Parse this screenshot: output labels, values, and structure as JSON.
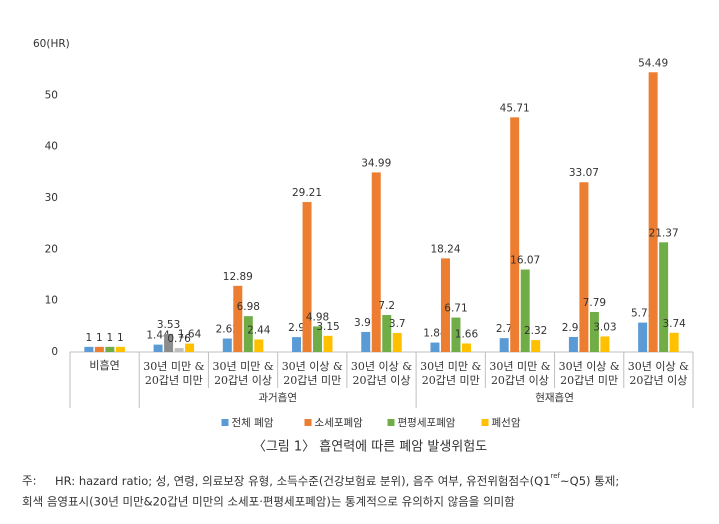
{
  "chart_data": {
    "type": "bar",
    "categories": [
      [
        "비흡연"
      ],
      [
        "30년 미만 &",
        "20갑년 미만"
      ],
      [
        "30년 미만 &",
        "20갑년 이상"
      ],
      [
        "30년 이상 &",
        "20갑년 미만"
      ],
      [
        "30년 이상 &",
        "20갑년 이상"
      ],
      [
        "30년 미만 &",
        "20갑년 미만"
      ],
      [
        "30년 미만 &",
        "20갑년 이상"
      ],
      [
        "30년 이상 &",
        "20갑년 미만"
      ],
      [
        "30년 이상 &",
        "20갑년 이상"
      ]
    ],
    "category_groups": [
      null,
      "과거흡연",
      "과거흡연",
      "과거흡연",
      "과거흡연",
      "현재흡연",
      "현재흡연",
      "현재흡연",
      "현재흡연"
    ],
    "series": [
      {
        "name": "전체 폐암",
        "color": "#5b9bd5",
        "values": [
          1,
          1.44,
          2.62,
          2.9,
          3.91,
          1.84,
          2.7,
          2.93,
          5.73
        ]
      },
      {
        "name": "소세포폐암",
        "color": "#ed7d31",
        "values": [
          1,
          3.53,
          12.89,
          29.21,
          34.99,
          18.24,
          45.71,
          33.07,
          54.49
        ],
        "point_colors": [
          null,
          "#8c8c8c",
          null,
          null,
          null,
          null,
          null,
          null,
          null
        ]
      },
      {
        "name": "편평세포폐암",
        "color": "#70ad47",
        "values": [
          1,
          0.76,
          6.98,
          4.98,
          7.2,
          6.71,
          16.07,
          7.79,
          21.37
        ],
        "point_colors": [
          null,
          "#bfbfbf",
          null,
          null,
          null,
          null,
          null,
          null,
          null
        ]
      },
      {
        "name": "폐선암",
        "color": "#ffc000",
        "values": [
          1,
          1.64,
          2.44,
          3.15,
          3.7,
          1.66,
          2.32,
          3.03,
          3.74
        ]
      }
    ],
    "ylim": [
      0,
      60
    ],
    "yticks": [
      0,
      10,
      20,
      30,
      40,
      50,
      {
        "value": 60,
        "label": "60(HR)"
      }
    ],
    "legend": "bottom",
    "title": "〈그림 1〉 흡연력에 따른 폐암 발생위험도",
    "note_label": "주:",
    "note_line1": [
      "HR: hazard ratio; 성, 연령, 의료보장 유형, 소득수준(건강보험료 분위), 음주 여부, 유전위험점수(Q1",
      "ref",
      "~Q5) 통제;"
    ],
    "note_line2": "회색 음영표시(30년 미만&20갑년 미만의 소세포·편평세포폐암)는 통계적으로 유의하지 않음을 의미함"
  }
}
